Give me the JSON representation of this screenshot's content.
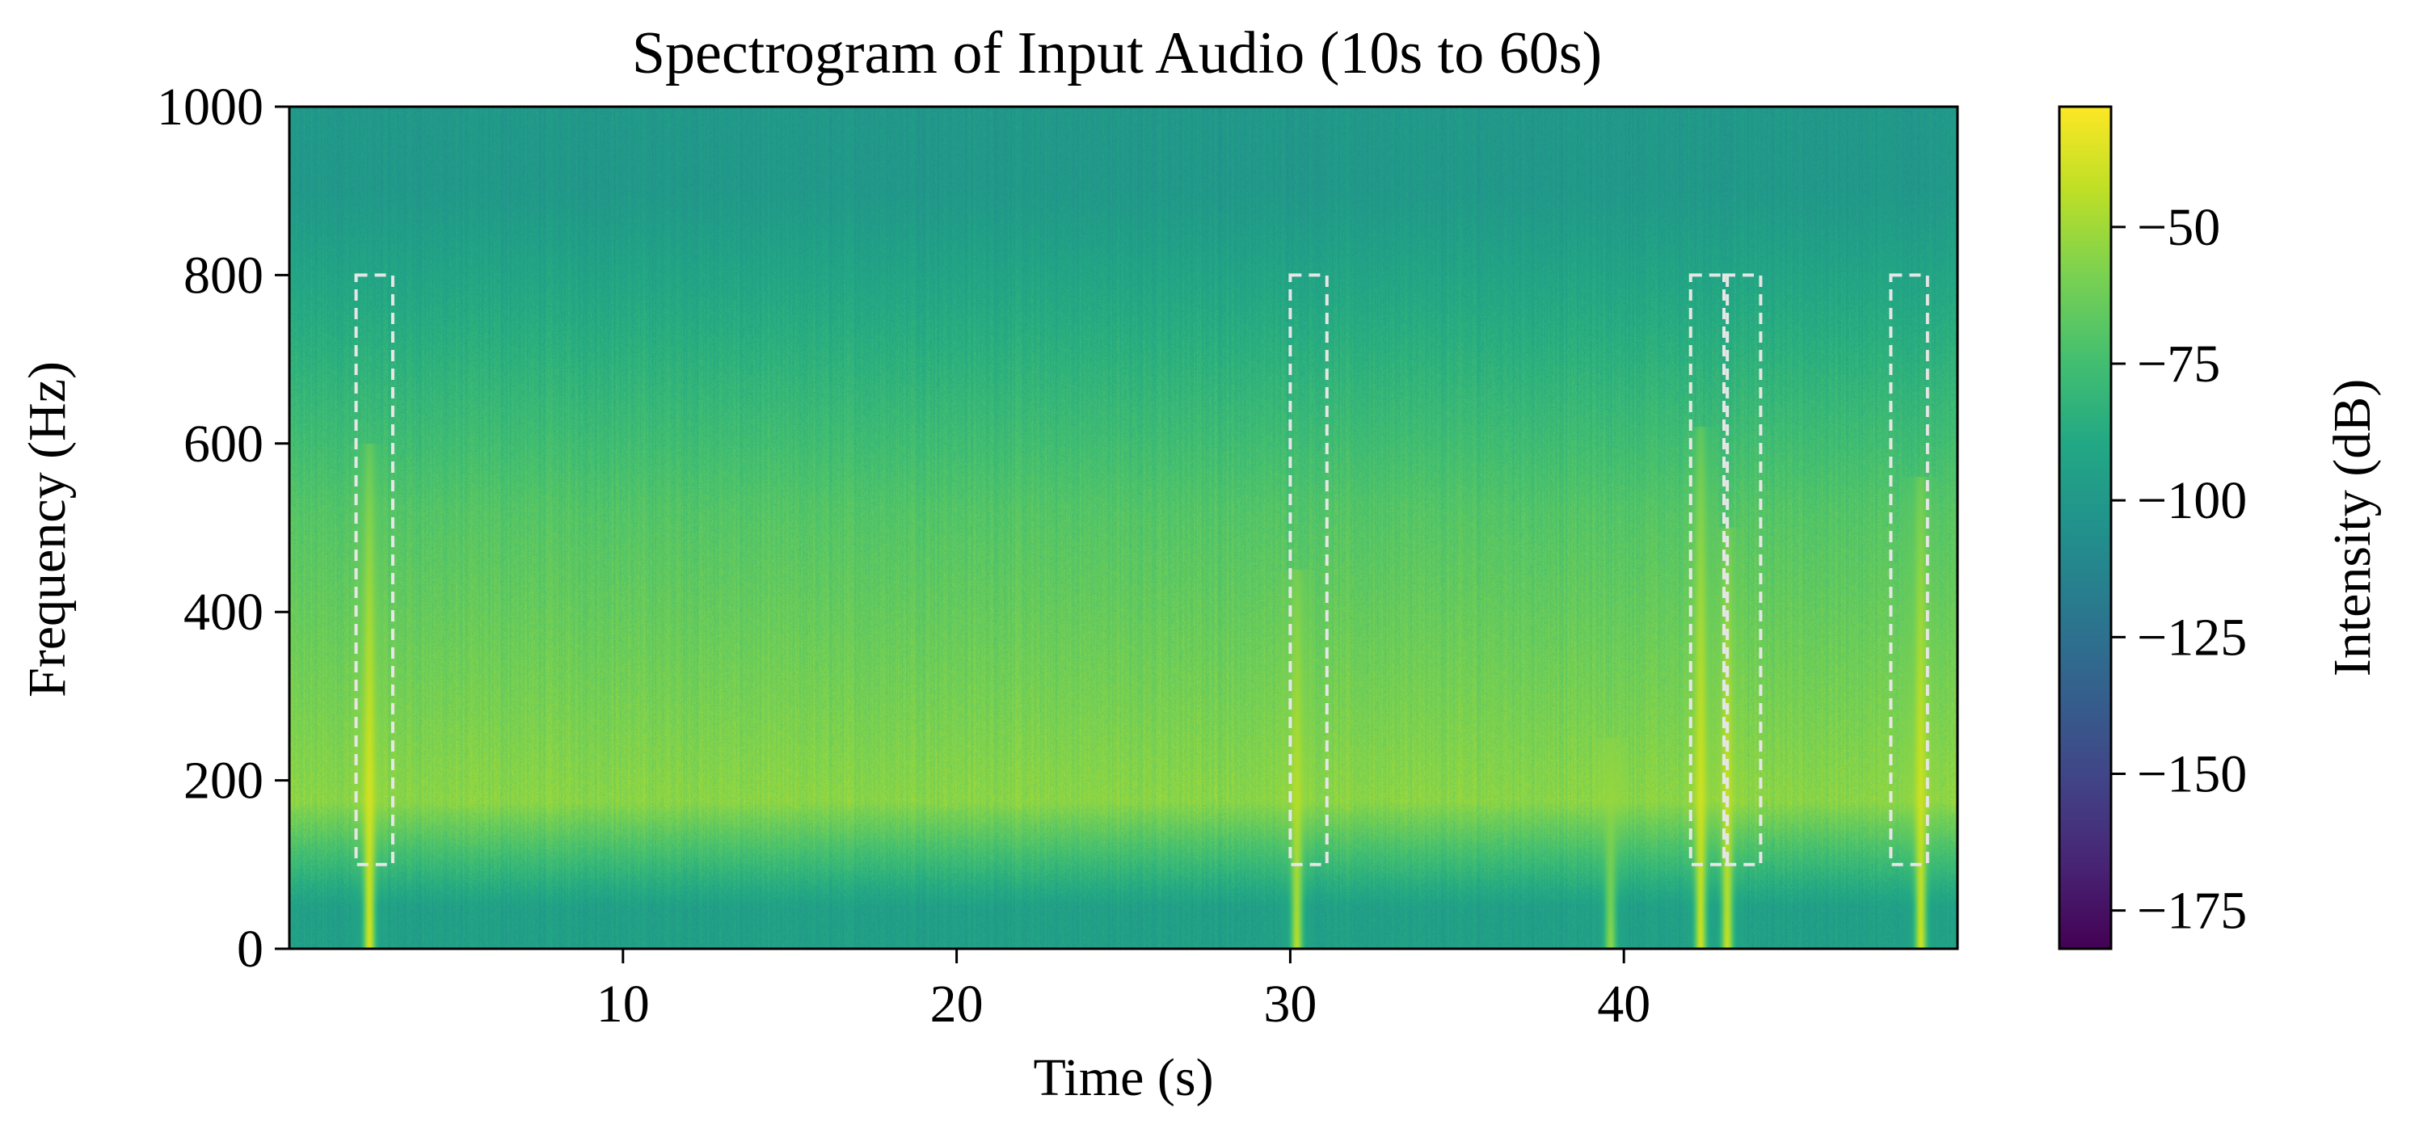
{
  "chart_data": {
    "type": "heatmap",
    "title": "Spectrogram of Input Audio (10s to 60s)",
    "xlabel": "Time (s)",
    "ylabel": "Frequency (Hz)",
    "xlim": [
      0,
      50
    ],
    "ylim": [
      0,
      1000
    ],
    "x_ticks": [
      10,
      20,
      30,
      40
    ],
    "y_ticks": [
      0,
      200,
      400,
      600,
      800,
      1000
    ],
    "grid": false,
    "colormap": "viridis",
    "colorbar": {
      "label": "Intensity (dB)",
      "range": [
        -182,
        -28
      ],
      "ticks": [
        -50,
        -75,
        -100,
        -125,
        -150,
        -175
      ]
    },
    "intensity_profile": {
      "frequency_bands_hz": [
        [
          0,
          100
        ],
        [
          100,
          250
        ],
        [
          250,
          800
        ],
        [
          800,
          1000
        ]
      ],
      "typical_db": [
        -95,
        -55,
        -70,
        -100
      ]
    },
    "highlighted_regions": [
      {
        "t_start": 2.0,
        "t_end": 3.1,
        "f_start": 100,
        "f_end": 800
      },
      {
        "t_start": 30.0,
        "t_end": 31.1,
        "f_start": 100,
        "f_end": 800
      },
      {
        "t_start": 42.0,
        "t_end": 43.1,
        "f_start": 100,
        "f_end": 800
      },
      {
        "t_start": 43.0,
        "t_end": 44.1,
        "f_start": 100,
        "f_end": 800
      },
      {
        "t_start": 48.0,
        "t_end": 49.1,
        "f_start": 100,
        "f_end": 800
      }
    ],
    "events": [
      {
        "t": 2.4,
        "f_low": 0,
        "f_high": 600,
        "peak_db": -32
      },
      {
        "t": 30.2,
        "f_low": 0,
        "f_high": 450,
        "peak_db": -40
      },
      {
        "t": 39.6,
        "f_low": 0,
        "f_high": 250,
        "peak_db": -50
      },
      {
        "t": 42.3,
        "f_low": 0,
        "f_high": 620,
        "peak_db": -34
      },
      {
        "t": 43.1,
        "f_low": 0,
        "f_high": 500,
        "peak_db": -36
      },
      {
        "t": 48.9,
        "f_low": 0,
        "f_high": 560,
        "peak_db": -34
      }
    ],
    "box_color": "#e6e6e6"
  }
}
